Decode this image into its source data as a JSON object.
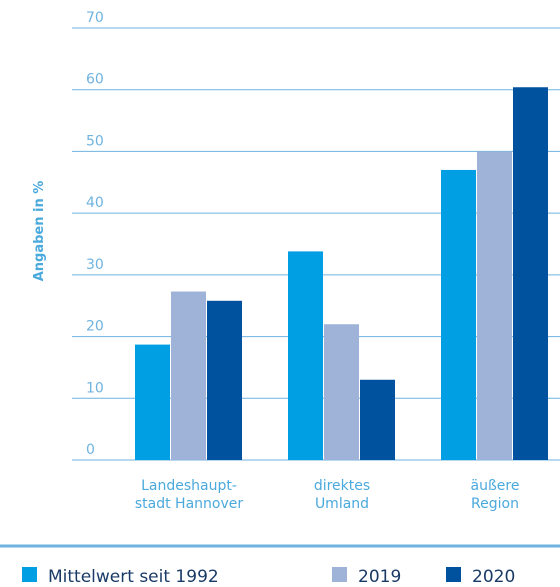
{
  "chart_data": {
    "type": "bar",
    "ylabel": "Angaben in %",
    "ylim": [
      0,
      70
    ],
    "yticks": [
      "0",
      "10",
      "20",
      "30",
      "40",
      "50",
      "60",
      "70"
    ],
    "categories": [
      [
        "Landeshaupt-",
        "stadt Hannover"
      ],
      [
        "direktes",
        "Umland"
      ],
      [
        "äußere",
        "Region"
      ]
    ],
    "series": [
      {
        "name": "Mittelwert seit 1992",
        "values": [
          18.7,
          33.8,
          47.0
        ],
        "color": "#009ee3"
      },
      {
        "name": "2019",
        "values": [
          27.3,
          22.0,
          50.0
        ],
        "color": "#9fb3d8"
      },
      {
        "name": "2020",
        "values": [
          25.8,
          13.0,
          60.4
        ],
        "color": "#00519e"
      }
    ],
    "grid": true,
    "legend_position": "bottom"
  }
}
